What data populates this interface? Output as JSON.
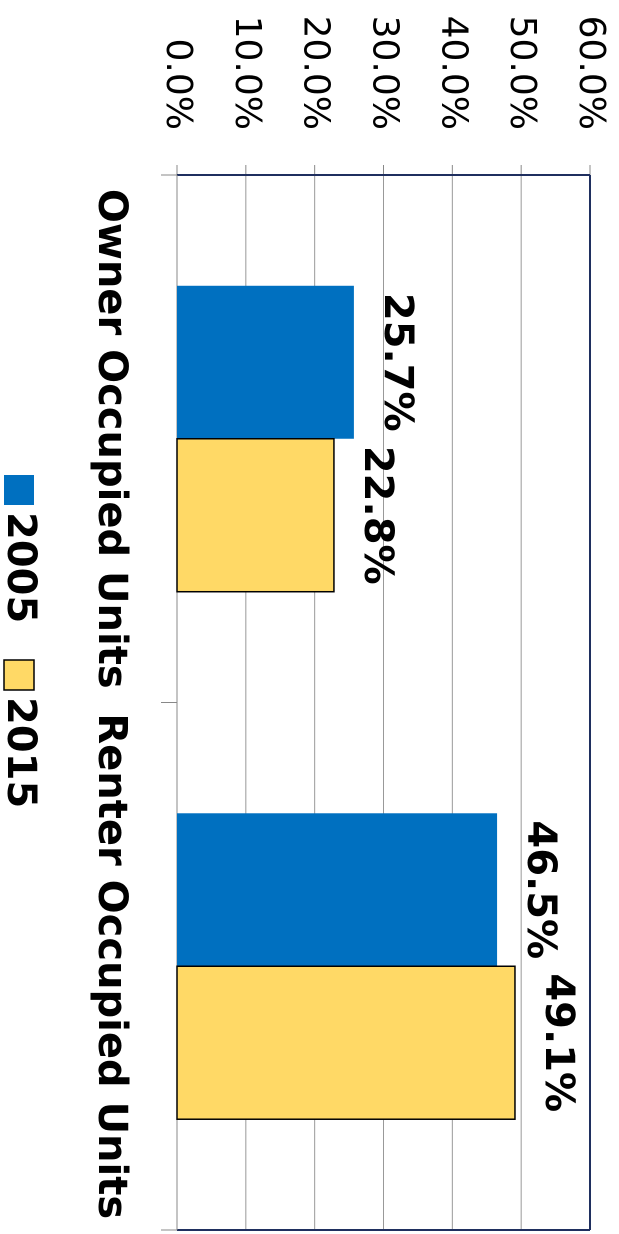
{
  "chart_data": {
    "type": "bar",
    "categories": [
      "Owner Occupied Units",
      "Renter Occupied Units"
    ],
    "series": [
      {
        "name": "2005",
        "color": "#0070c0",
        "values": [
          25.7,
          46.5
        ],
        "value_labels": [
          "25.7%",
          "46.5%"
        ]
      },
      {
        "name": "2015",
        "color": "#ffd966",
        "values": [
          22.8,
          49.1
        ],
        "value_labels": [
          "22.8%",
          "49.1%"
        ]
      }
    ],
    "ylim": [
      0,
      60
    ],
    "yticks": [
      {
        "value": 0,
        "label": "0.0%"
      },
      {
        "value": 10,
        "label": "10.0%"
      },
      {
        "value": 20,
        "label": "20.0%"
      },
      {
        "value": 30,
        "label": "30.0%"
      },
      {
        "value": 40,
        "label": "40.0%"
      },
      {
        "value": 50,
        "label": "50.0%"
      },
      {
        "value": 60,
        "label": "60.0%"
      }
    ],
    "grid": true,
    "legend": "bottom"
  }
}
